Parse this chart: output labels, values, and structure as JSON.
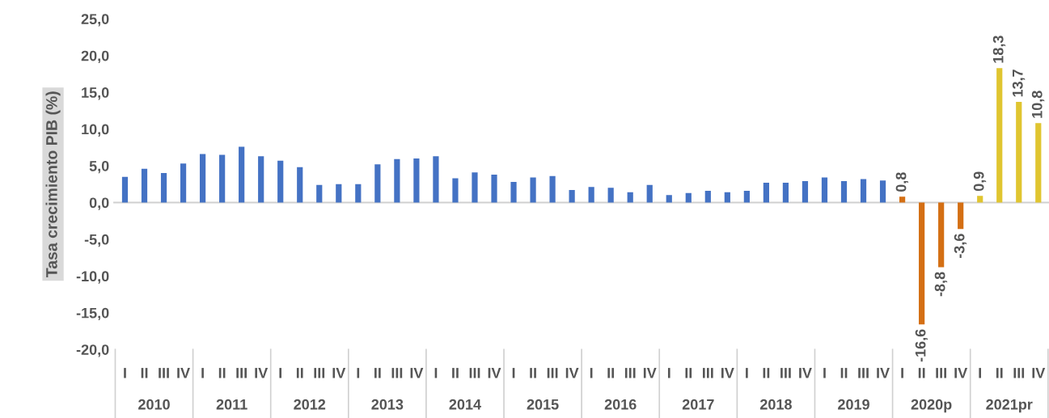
{
  "chart_data": {
    "type": "bar",
    "ylabel": "Tasa crecimiento PIB (%)",
    "categories": [
      "I",
      "II",
      "III",
      "IV",
      "I",
      "II",
      "III",
      "IV",
      "I",
      "II",
      "III",
      "IV",
      "I",
      "II",
      "III",
      "IV",
      "I",
      "II",
      "III",
      "IV",
      "I",
      "II",
      "III",
      "IV",
      "I",
      "II",
      "III",
      "IV",
      "I",
      "II",
      "III",
      "IV",
      "I",
      "II",
      "III",
      "IV",
      "I",
      "II",
      "III",
      "IV",
      "I",
      "II",
      "III",
      "IV",
      "I",
      "II",
      "III",
      "IV"
    ],
    "values": [
      3.5,
      4.6,
      4.0,
      5.3,
      6.6,
      6.5,
      7.6,
      6.3,
      5.7,
      4.8,
      2.4,
      2.5,
      2.5,
      5.2,
      5.9,
      6.0,
      6.3,
      3.3,
      4.1,
      3.8,
      2.8,
      3.4,
      3.6,
      1.7,
      2.1,
      2.0,
      1.4,
      2.4,
      1.0,
      1.3,
      1.6,
      1.4,
      1.6,
      2.7,
      2.7,
      2.9,
      3.4,
      2.9,
      3.2,
      3.0,
      0.8,
      -16.6,
      -8.8,
      -3.6,
      0.9,
      18.3,
      13.7,
      10.8
    ],
    "colors": [
      "#4472c4",
      "#4472c4",
      "#4472c4",
      "#4472c4",
      "#4472c4",
      "#4472c4",
      "#4472c4",
      "#4472c4",
      "#4472c4",
      "#4472c4",
      "#4472c4",
      "#4472c4",
      "#4472c4",
      "#4472c4",
      "#4472c4",
      "#4472c4",
      "#4472c4",
      "#4472c4",
      "#4472c4",
      "#4472c4",
      "#4472c4",
      "#4472c4",
      "#4472c4",
      "#4472c4",
      "#4472c4",
      "#4472c4",
      "#4472c4",
      "#4472c4",
      "#4472c4",
      "#4472c4",
      "#4472c4",
      "#4472c4",
      "#4472c4",
      "#4472c4",
      "#4472c4",
      "#4472c4",
      "#4472c4",
      "#4472c4",
      "#4472c4",
      "#4472c4",
      "#d46f14",
      "#d46f14",
      "#d46f14",
      "#d46f14",
      "#e0c530",
      "#e0c530",
      "#e0c530",
      "#e0c530"
    ],
    "value_labels": [
      null,
      null,
      null,
      null,
      null,
      null,
      null,
      null,
      null,
      null,
      null,
      null,
      null,
      null,
      null,
      null,
      null,
      null,
      null,
      null,
      null,
      null,
      null,
      null,
      null,
      null,
      null,
      null,
      null,
      null,
      null,
      null,
      null,
      null,
      null,
      null,
      null,
      null,
      null,
      null,
      "0,8",
      "-16,6",
      "-8,8",
      "-3,6",
      "0,9",
      "18,3",
      "13,7",
      "10,8"
    ],
    "ylim": [
      -20,
      25
    ],
    "yticks": [
      {
        "value": -20,
        "label": "-20,0"
      },
      {
        "value": -15,
        "label": "-15,0"
      },
      {
        "value": -10,
        "label": "-10,0"
      },
      {
        "value": -5,
        "label": "-5,0"
      },
      {
        "value": 0,
        "label": "0,0"
      },
      {
        "value": 5,
        "label": "5,0"
      },
      {
        "value": 10,
        "label": "10,0"
      },
      {
        "value": 15,
        "label": "15,0"
      },
      {
        "value": 20,
        "label": "20,0"
      },
      {
        "value": 25,
        "label": "25,0"
      }
    ],
    "annotations": [
      "2010",
      "2011",
      "2012",
      "2013",
      "2014",
      "2015",
      "2016",
      "2017",
      "2018",
      "2019",
      "2020p",
      "2021pr"
    ],
    "legend": false
  }
}
